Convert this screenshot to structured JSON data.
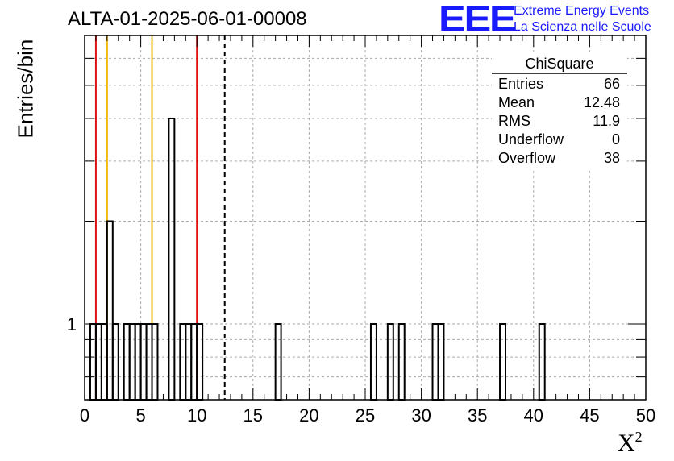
{
  "chart_data": {
    "type": "bar",
    "title": "ALTA-01-2025-06-01-00008",
    "xlabel": "X",
    "xlabel_superscript": "2",
    "ylabel": "Entries/bin",
    "xlim": [
      0,
      50
    ],
    "ylim": [
      0.6,
      7
    ],
    "y_scale": "log",
    "grid": true,
    "x_ticks": [
      "0",
      "5",
      "10",
      "15",
      "20",
      "25",
      "30",
      "35",
      "40",
      "45",
      "50"
    ],
    "x_tick_values": [
      0,
      5,
      10,
      15,
      20,
      25,
      30,
      35,
      40,
      45,
      50
    ],
    "y_tick_labels": [
      {
        "value": 1,
        "label": "1"
      }
    ],
    "bin_width": 0.5,
    "bins": [
      {
        "x": 0.5,
        "count": 1
      },
      {
        "x": 1.0,
        "count": 1
      },
      {
        "x": 1.5,
        "count": 1
      },
      {
        "x": 2.0,
        "count": 2
      },
      {
        "x": 2.5,
        "count": 1
      },
      {
        "x": 3.5,
        "count": 1
      },
      {
        "x": 4.0,
        "count": 1
      },
      {
        "x": 4.5,
        "count": 1
      },
      {
        "x": 5.0,
        "count": 1
      },
      {
        "x": 5.5,
        "count": 1
      },
      {
        "x": 6.0,
        "count": 1
      },
      {
        "x": 7.5,
        "count": 4
      },
      {
        "x": 8.5,
        "count": 1
      },
      {
        "x": 9.0,
        "count": 1
      },
      {
        "x": 9.5,
        "count": 1
      },
      {
        "x": 10.0,
        "count": 1
      },
      {
        "x": 17.0,
        "count": 1
      },
      {
        "x": 25.5,
        "count": 1
      },
      {
        "x": 27.0,
        "count": 1
      },
      {
        "x": 28.0,
        "count": 1
      },
      {
        "x": 31.0,
        "count": 1
      },
      {
        "x": 31.5,
        "count": 1
      },
      {
        "x": 37.0,
        "count": 1
      },
      {
        "x": 40.5,
        "count": 1
      }
    ],
    "vertical_lines": [
      {
        "x": 1.0,
        "color": "#dd1111",
        "style": "solid"
      },
      {
        "x": 2.0,
        "color": "#f2b705",
        "style": "solid"
      },
      {
        "x": 6.0,
        "color": "#f2b705",
        "style": "solid"
      },
      {
        "x": 10.0,
        "color": "#dd1111",
        "style": "solid"
      },
      {
        "x": 12.48,
        "color": "#000000",
        "style": "dashed"
      }
    ],
    "stats": {
      "name": "ChiSquare",
      "rows": [
        {
          "label": "Entries",
          "value": "66"
        },
        {
          "label": "Mean",
          "value": "12.48"
        },
        {
          "label": "RMS",
          "value": "11.9"
        },
        {
          "label": "Underflow",
          "value": "0"
        },
        {
          "label": "Overflow",
          "value": "38"
        }
      ]
    }
  },
  "logo": {
    "mark": "EEE",
    "line1": "Extreme Energy Events",
    "line2": "La Scienza nelle Scuole"
  },
  "colors": {
    "histogram": "#000000",
    "grid": "#aaaaaa",
    "logo": "#1a1aff",
    "red_line": "#dd1111",
    "yellow_line": "#f2b705"
  }
}
